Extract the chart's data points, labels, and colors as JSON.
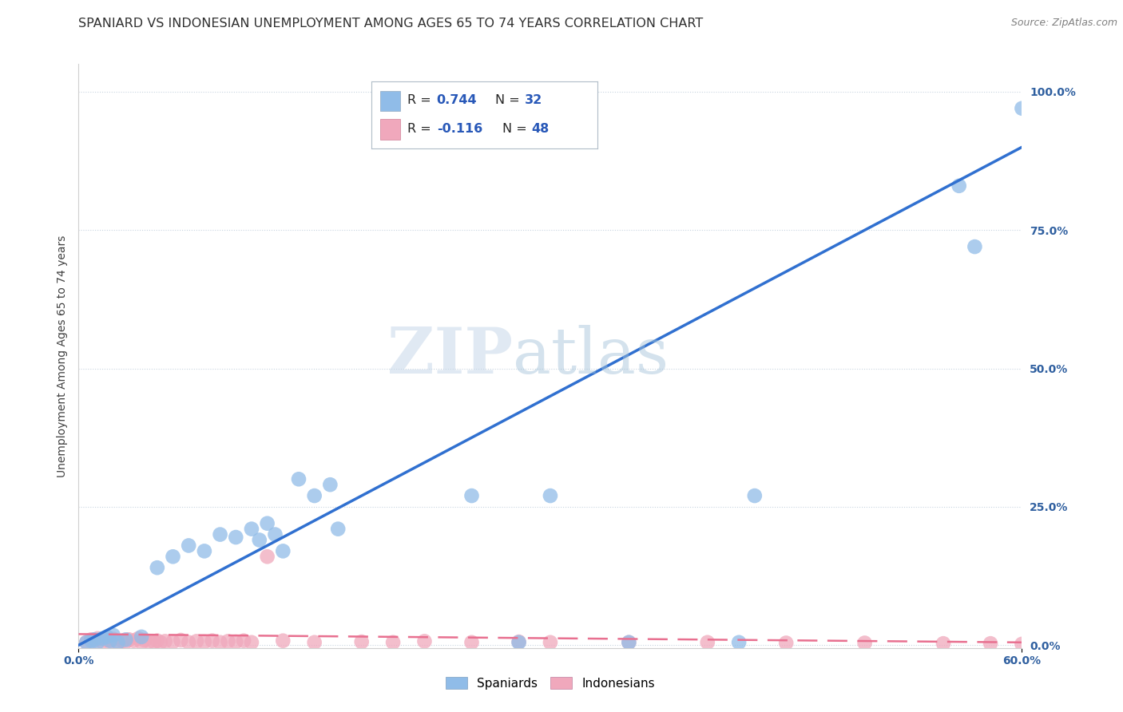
{
  "title": "SPANIARD VS INDONESIAN UNEMPLOYMENT AMONG AGES 65 TO 74 YEARS CORRELATION CHART",
  "source": "Source: ZipAtlas.com",
  "ylabel": "Unemployment Among Ages 65 to 74 years",
  "xlim": [
    0.0,
    0.6
  ],
  "ylim": [
    -0.005,
    1.05
  ],
  "x_tick_positions": [
    0.0,
    0.6
  ],
  "x_tick_labels": [
    "0.0%",
    "60.0%"
  ],
  "y_tick_positions": [
    0.0,
    0.25,
    0.5,
    0.75,
    1.0
  ],
  "y_tick_labels": [
    "0.0%",
    "25.0%",
    "50.0%",
    "75.0%",
    "100.0%"
  ],
  "watermark_text": "ZIPatlas",
  "spaniards_color": "#90bce8",
  "indonesians_color": "#f0a8bc",
  "spaniard_trend_color": "#3070d0",
  "indonesian_trend_color": "#e87090",
  "background_color": "#ffffff",
  "grid_color": "#c8d4e0",
  "title_fontsize": 11.5,
  "axis_label_fontsize": 10,
  "tick_fontsize": 10,
  "spaniards": [
    [
      0.005,
      0.005
    ],
    [
      0.008,
      0.008
    ],
    [
      0.01,
      0.01
    ],
    [
      0.012,
      0.005
    ],
    [
      0.015,
      0.012
    ],
    [
      0.018,
      0.015
    ],
    [
      0.02,
      0.008
    ],
    [
      0.022,
      0.018
    ],
    [
      0.025,
      0.005
    ],
    [
      0.03,
      0.01
    ],
    [
      0.04,
      0.015
    ],
    [
      0.05,
      0.14
    ],
    [
      0.06,
      0.16
    ],
    [
      0.07,
      0.18
    ],
    [
      0.08,
      0.17
    ],
    [
      0.09,
      0.2
    ],
    [
      0.1,
      0.195
    ],
    [
      0.11,
      0.21
    ],
    [
      0.115,
      0.19
    ],
    [
      0.12,
      0.22
    ],
    [
      0.125,
      0.2
    ],
    [
      0.13,
      0.17
    ],
    [
      0.14,
      0.3
    ],
    [
      0.15,
      0.27
    ],
    [
      0.16,
      0.29
    ],
    [
      0.165,
      0.21
    ],
    [
      0.25,
      0.27
    ],
    [
      0.28,
      0.005
    ],
    [
      0.3,
      0.27
    ],
    [
      0.35,
      0.005
    ],
    [
      0.42,
      0.005
    ],
    [
      0.43,
      0.27
    ],
    [
      0.56,
      0.83
    ],
    [
      0.57,
      0.72
    ],
    [
      0.6,
      0.97
    ]
  ],
  "indonesians": [
    [
      0.005,
      0.005
    ],
    [
      0.008,
      0.01
    ],
    [
      0.01,
      0.008
    ],
    [
      0.012,
      0.012
    ],
    [
      0.015,
      0.006
    ],
    [
      0.018,
      0.009
    ],
    [
      0.02,
      0.007
    ],
    [
      0.022,
      0.011
    ],
    [
      0.025,
      0.005
    ],
    [
      0.028,
      0.008
    ],
    [
      0.03,
      0.006
    ],
    [
      0.032,
      0.01
    ],
    [
      0.035,
      0.008
    ],
    [
      0.038,
      0.012
    ],
    [
      0.04,
      0.005
    ],
    [
      0.042,
      0.009
    ],
    [
      0.045,
      0.007
    ],
    [
      0.048,
      0.006
    ],
    [
      0.05,
      0.008
    ],
    [
      0.052,
      0.005
    ],
    [
      0.055,
      0.007
    ],
    [
      0.06,
      0.006
    ],
    [
      0.065,
      0.009
    ],
    [
      0.07,
      0.005
    ],
    [
      0.075,
      0.007
    ],
    [
      0.08,
      0.006
    ],
    [
      0.085,
      0.008
    ],
    [
      0.09,
      0.005
    ],
    [
      0.095,
      0.007
    ],
    [
      0.1,
      0.006
    ],
    [
      0.105,
      0.008
    ],
    [
      0.11,
      0.005
    ],
    [
      0.12,
      0.16
    ],
    [
      0.13,
      0.008
    ],
    [
      0.15,
      0.005
    ],
    [
      0.18,
      0.006
    ],
    [
      0.2,
      0.005
    ],
    [
      0.22,
      0.007
    ],
    [
      0.25,
      0.005
    ],
    [
      0.28,
      0.006
    ],
    [
      0.3,
      0.005
    ],
    [
      0.35,
      0.005
    ],
    [
      0.4,
      0.005
    ],
    [
      0.45,
      0.004
    ],
    [
      0.5,
      0.004
    ],
    [
      0.55,
      0.003
    ],
    [
      0.58,
      0.003
    ],
    [
      0.6,
      0.002
    ]
  ],
  "spaniard_trendline_forced": [
    0.0,
    0.0,
    0.6,
    0.9
  ],
  "indonesian_trendline_forced": [
    0.0,
    0.02,
    0.6,
    0.005
  ]
}
